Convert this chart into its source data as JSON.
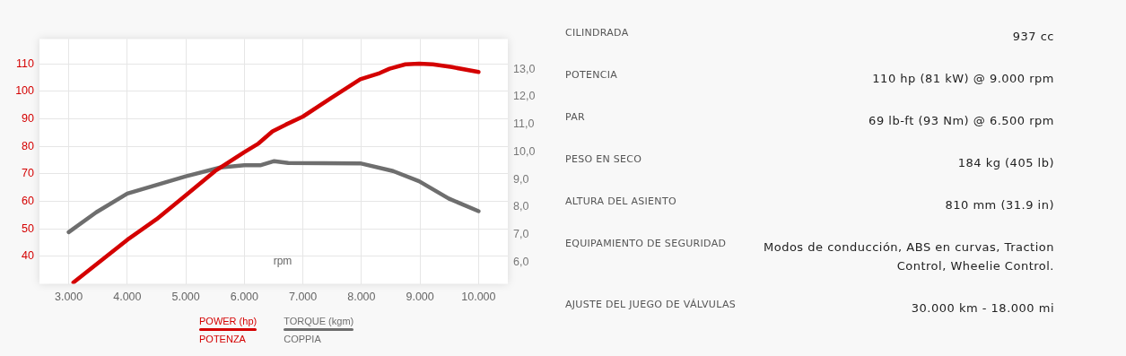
{
  "chart_data": [
    {
      "type": "line",
      "xlabel": "rpm",
      "grid": true,
      "legend": "bottom",
      "marker": "none",
      "line_style": "solid",
      "xlim": [
        2500,
        10500
      ],
      "xticks": [
        {
          "value": 3000,
          "label": "3.000"
        },
        {
          "value": 4000,
          "label": "4.000"
        },
        {
          "value": 5000,
          "label": "5.000"
        },
        {
          "value": 6000,
          "label": "6.000"
        },
        {
          "value": 7000,
          "label": "7.000"
        },
        {
          "value": 8000,
          "label": "8.000"
        },
        {
          "value": 9000,
          "label": "9.000"
        },
        {
          "value": 10000,
          "label": "10.000"
        }
      ],
      "ylim": [
        30,
        119
      ],
      "yticks": [
        40,
        50,
        60,
        70,
        80,
        90,
        100,
        110
      ],
      "y2lim": [
        5.0,
        13.9
      ],
      "y2ticks": [
        {
          "value": 6,
          "label": "6,0"
        },
        {
          "value": 7,
          "label": "7,0"
        },
        {
          "value": 8,
          "label": "8,0"
        },
        {
          "value": 9,
          "label": "9,0"
        },
        {
          "value": 10,
          "label": "10,0"
        },
        {
          "value": 11,
          "label": "11,0"
        },
        {
          "value": 12,
          "label": "12,0"
        },
        {
          "value": 13,
          "label": "13,0"
        }
      ],
      "series": [
        {
          "name": "POWER (hp)\nPOTENZA",
          "color": "#d40000",
          "x": [
            3080,
            4000,
            4500,
            5000,
            5500,
            6000,
            6240,
            6480,
            6710,
            7000,
            7480,
            7980,
            8310,
            8480,
            8750,
            8985,
            9220,
            9545,
            10000
          ],
          "values": [
            30.5,
            46,
            53.5,
            62.2,
            71,
            77.9,
            81,
            85.4,
            87.9,
            90.8,
            97.5,
            104.4,
            106.6,
            108.2,
            109.8,
            110,
            109.8,
            108.8,
            107
          ]
        },
        {
          "name": "TORQUE (kgm)\nCOPPIA",
          "color": "#6e6e6e",
          "axis": "y2",
          "x": [
            3000,
            3470,
            4000,
            5000,
            5590,
            6000,
            6270,
            6510,
            6750,
            7980,
            8540,
            8985,
            9490,
            10000
          ],
          "values": [
            6.88,
            7.6,
            8.28,
            8.91,
            9.23,
            9.31,
            9.31,
            9.46,
            9.39,
            9.38,
            9.1,
            8.73,
            8.1,
            7.64
          ]
        }
      ]
    },
    {
      "type": "other",
      "annotations": [
        "CILINDRADA",
        "937 cc",
        "POTENCIA",
        "110 hp (81 kW) @ 9.000 rpm",
        "PAR",
        "69 lb-ft (93 Nm) @ 6.500 rpm",
        "PESO EN SECO",
        "184 kg (405 lb)",
        "ALTURA DEL ASIENTO",
        "810 mm (31.9 in)",
        "EQUIPAMIENTO DE SEGURIDAD",
        "Modos de conducción, ABS en curvas, Traction Control, Wheelie Control.",
        "AJUSTE DEL JUEGO DE VÁLVULAS",
        "30.000 km - 18.000 mi"
      ]
    }
  ]
}
